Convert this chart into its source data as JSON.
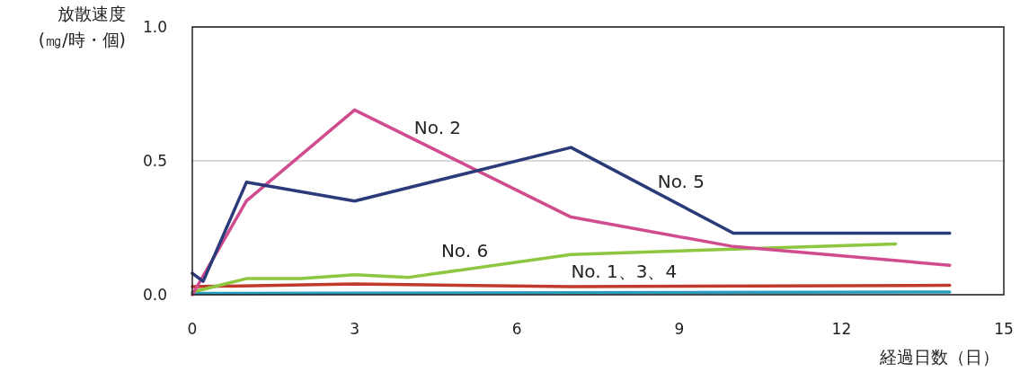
{
  "chart_data": {
    "type": "line",
    "ylabel": "放散速度\n(㎎/時・個)",
    "xlabel": "経過日数（日）",
    "xlim": [
      0,
      15
    ],
    "xticks": [
      0,
      3,
      6,
      9,
      12,
      15
    ],
    "ylim": [
      0,
      1.0
    ],
    "yticks": [
      {
        "value": 0,
        "label": "0.0"
      },
      {
        "value": 0.5,
        "label": "0.5"
      },
      {
        "value": 1.0,
        "label": "1.0"
      }
    ],
    "grid": "y",
    "marker": "none",
    "line_style": "solid",
    "series": [
      {
        "name": "No. 2",
        "color": "#d14b8f",
        "x": [
          0,
          1,
          3,
          7,
          10,
          14
        ],
        "values": [
          0.0,
          0.35,
          0.69,
          0.29,
          0.18,
          0.11
        ]
      },
      {
        "name": "No. 5",
        "color": "#2b3a78",
        "x": [
          0,
          0.2,
          1,
          3,
          7,
          10,
          14
        ],
        "values": [
          0.08,
          0.05,
          0.42,
          0.35,
          0.55,
          0.23,
          0.23
        ]
      },
      {
        "name": "No. 6",
        "color": "#8dc63f",
        "x": [
          0,
          1,
          2,
          3,
          4,
          7,
          10,
          13
        ],
        "values": [
          0.01,
          0.06,
          0.06,
          0.075,
          0.065,
          0.15,
          0.17,
          0.19
        ]
      },
      {
        "color": "#c0392b",
        "x": [
          0,
          3,
          7,
          14
        ],
        "values": [
          0.03,
          0.04,
          0.03,
          0.035
        ]
      },
      {
        "color": "#2a9cc0",
        "x": [
          0,
          14
        ],
        "values": [
          0.005,
          0.01
        ]
      }
    ],
    "annotations": [
      {
        "text": "No. 1、3、4",
        "x": 7,
        "y": 0.03
      }
    ]
  }
}
